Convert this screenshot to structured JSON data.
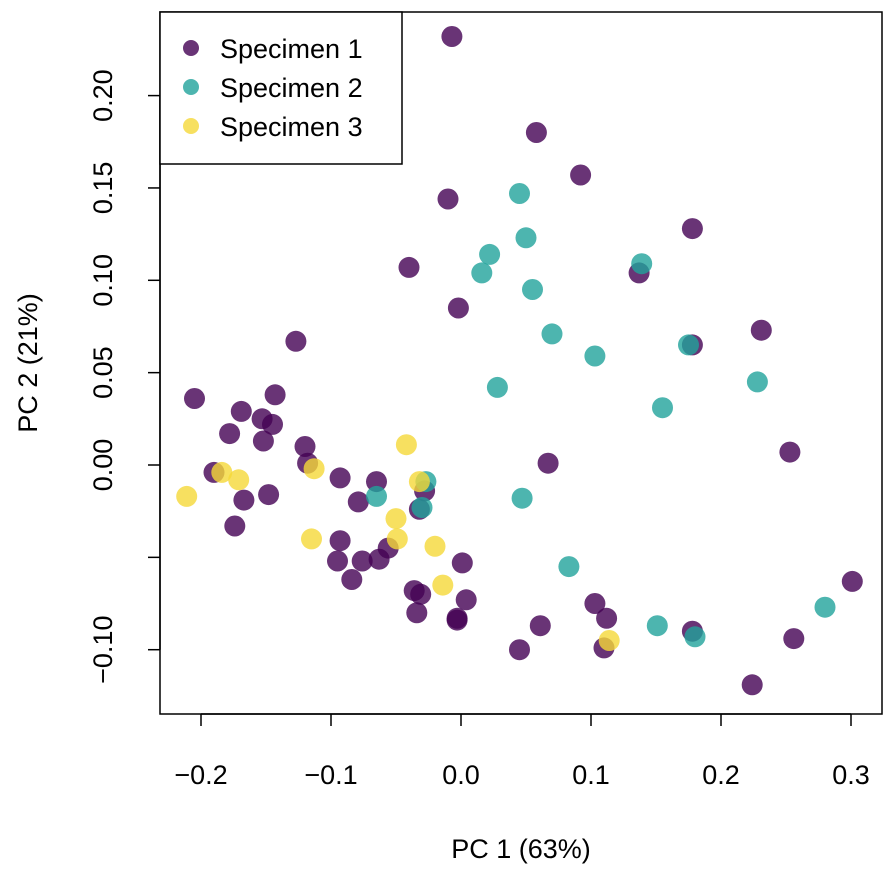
{
  "chart_data": {
    "type": "scatter",
    "title": "",
    "xlabel": "PC 1 (63%)",
    "ylabel": "PC 2 (21%)",
    "xlim": [
      -0.23,
      0.32
    ],
    "ylim": [
      -0.13,
      0.245
    ],
    "xticks": [
      -0.2,
      -0.1,
      0.0,
      0.1,
      0.2,
      0.3
    ],
    "xtick_labels": [
      "−0.2",
      "−0.1",
      "0.0",
      "0.1",
      "0.2",
      "0.3"
    ],
    "yticks": [
      -0.1,
      -0.05,
      0.0,
      0.05,
      0.1,
      0.15,
      0.2
    ],
    "ytick_labels": [
      "−0.10",
      "",
      "0.00",
      "0.05",
      "0.10",
      "0.15",
      "0.20"
    ],
    "grid": false,
    "legend_position": "top-left",
    "series": [
      {
        "name": "Specimen 1",
        "color": "#440154",
        "points": [
          [
            -0.007,
            0.232
          ],
          [
            0.058,
            0.18
          ],
          [
            0.092,
            0.157
          ],
          [
            -0.01,
            0.144
          ],
          [
            0.178,
            0.128
          ],
          [
            -0.04,
            0.107
          ],
          [
            0.137,
            0.104
          ],
          [
            -0.002,
            0.085
          ],
          [
            0.231,
            0.073
          ],
          [
            -0.127,
            0.067
          ],
          [
            0.178,
            0.065
          ],
          [
            -0.143,
            0.038
          ],
          [
            -0.205,
            0.036
          ],
          [
            -0.169,
            0.029
          ],
          [
            -0.153,
            0.025
          ],
          [
            -0.145,
            0.022
          ],
          [
            -0.178,
            0.017
          ],
          [
            -0.152,
            0.013
          ],
          [
            -0.12,
            0.01
          ],
          [
            0.253,
            0.007
          ],
          [
            -0.118,
            0.001
          ],
          [
            0.067,
            0.001
          ],
          [
            -0.19,
            -0.004
          ],
          [
            -0.093,
            -0.007
          ],
          [
            -0.065,
            -0.009
          ],
          [
            -0.028,
            -0.014
          ],
          [
            -0.148,
            -0.016
          ],
          [
            -0.167,
            -0.019
          ],
          [
            -0.079,
            -0.02
          ],
          [
            -0.032,
            -0.024
          ],
          [
            -0.174,
            -0.033
          ],
          [
            -0.093,
            -0.041
          ],
          [
            -0.056,
            -0.045
          ],
          [
            -0.095,
            -0.052
          ],
          [
            -0.076,
            -0.052
          ],
          [
            -0.063,
            -0.051
          ],
          [
            0.001,
            -0.053
          ],
          [
            -0.084,
            -0.062
          ],
          [
            -0.036,
            -0.068
          ],
          [
            -0.031,
            -0.07
          ],
          [
            0.004,
            -0.073
          ],
          [
            0.103,
            -0.075
          ],
          [
            -0.034,
            -0.08
          ],
          [
            0.112,
            -0.083
          ],
          [
            -0.003,
            -0.083
          ],
          [
            -0.003,
            -0.084
          ],
          [
            0.061,
            -0.087
          ],
          [
            0.178,
            -0.09
          ],
          [
            0.256,
            -0.094
          ],
          [
            0.045,
            -0.1
          ],
          [
            0.11,
            -0.099
          ],
          [
            0.224,
            -0.119
          ],
          [
            0.301,
            -0.063
          ]
        ]
      },
      {
        "name": "Specimen 2",
        "color": "#21A39B",
        "points": [
          [
            0.045,
            0.147
          ],
          [
            0.05,
            0.123
          ],
          [
            0.022,
            0.114
          ],
          [
            0.016,
            0.104
          ],
          [
            0.139,
            0.109
          ],
          [
            0.055,
            0.095
          ],
          [
            0.07,
            0.071
          ],
          [
            0.175,
            0.065
          ],
          [
            0.103,
            0.059
          ],
          [
            0.028,
            0.042
          ],
          [
            0.228,
            0.045
          ],
          [
            0.155,
            0.031
          ],
          [
            -0.027,
            -0.009
          ],
          [
            -0.065,
            -0.017
          ],
          [
            0.047,
            -0.018
          ],
          [
            -0.03,
            -0.023
          ],
          [
            0.083,
            -0.055
          ],
          [
            0.151,
            -0.087
          ],
          [
            0.28,
            -0.077
          ],
          [
            0.18,
            -0.093
          ]
        ]
      },
      {
        "name": "Specimen 3",
        "color": "#F5D838",
        "points": [
          [
            -0.211,
            -0.017
          ],
          [
            -0.184,
            -0.004
          ],
          [
            -0.171,
            -0.008
          ],
          [
            -0.113,
            -0.002
          ],
          [
            -0.042,
            0.011
          ],
          [
            -0.032,
            -0.009
          ],
          [
            -0.05,
            -0.029
          ],
          [
            -0.115,
            -0.04
          ],
          [
            -0.049,
            -0.04
          ],
          [
            -0.02,
            -0.044
          ],
          [
            -0.014,
            -0.065
          ],
          [
            0.114,
            -0.095
          ]
        ]
      }
    ]
  }
}
